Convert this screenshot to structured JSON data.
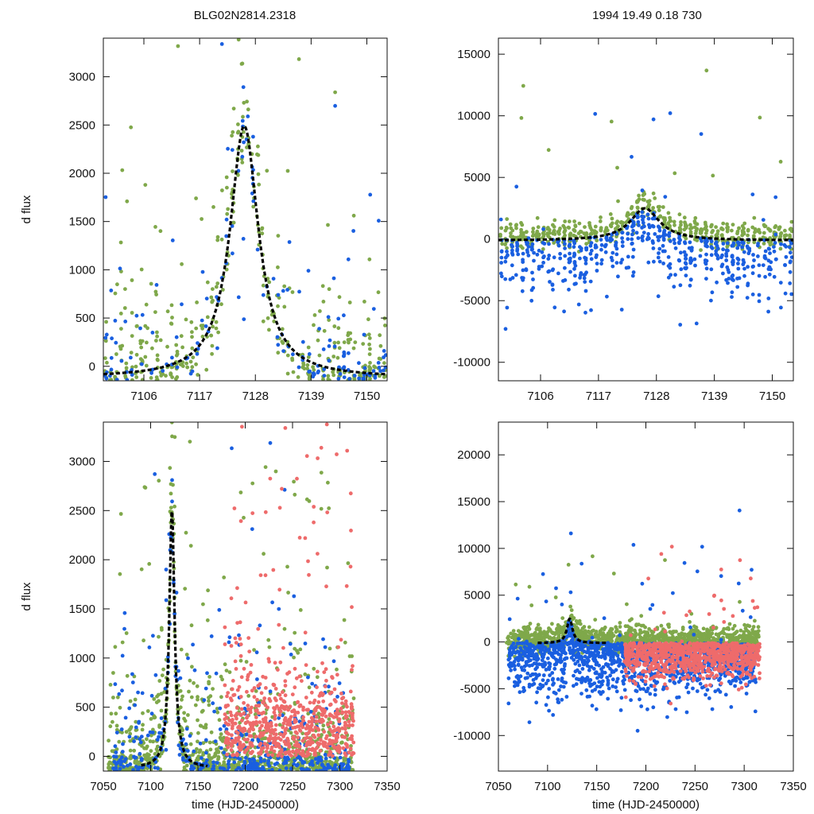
{
  "figure": {
    "title_left": "BLG02N2814.2318",
    "title_right": "1994  19.49  0.18  730"
  },
  "colors": {
    "green": "#7fa84a",
    "blue": "#1a5fe0",
    "red": "#ee6b6b",
    "model": "#000000",
    "axis": "#111111"
  },
  "chart_data": [
    {
      "id": "top-left",
      "type": "scatter",
      "xlim": [
        7098,
        7154
      ],
      "ylim": [
        -150,
        3400
      ],
      "xticks": [
        7106,
        7117,
        7128,
        7139,
        7150
      ],
      "yticks": [
        0,
        500,
        1000,
        1500,
        2000,
        2500,
        3000
      ],
      "xlabel": "",
      "ylabel": "d flux",
      "model": {
        "t0": 7125.8,
        "amp": 2610,
        "tau": 3.4,
        "x_from": 7098,
        "x_to": 7154
      },
      "series": [
        {
          "name": "green",
          "color": "green",
          "x_range": [
            7098,
            7154
          ],
          "count": 420,
          "mode": "peak",
          "scatter": 700,
          "floor": -150
        },
        {
          "name": "blue",
          "color": "blue",
          "x_range": [
            7098,
            7154
          ],
          "count": 170,
          "mode": "peak",
          "scatter": 900,
          "floor": -150
        }
      ]
    },
    {
      "id": "top-right",
      "type": "scatter",
      "xlim": [
        7098,
        7154
      ],
      "ylim": [
        -11500,
        16300
      ],
      "xticks": [
        7106,
        7117,
        7128,
        7139,
        7150
      ],
      "yticks": [
        -10000,
        -5000,
        0,
        5000,
        10000,
        15000
      ],
      "xlabel": "",
      "ylabel": "",
      "model": {
        "t0": 7125.8,
        "amp": 2610,
        "tau": 3.4,
        "x_from": 7098,
        "x_to": 7154
      },
      "series": [
        {
          "name": "green",
          "color": "green",
          "x_range": [
            7098,
            7154
          ],
          "count": 520,
          "mode": "band_up",
          "scatter": 900,
          "floor": -11500
        },
        {
          "name": "blue",
          "color": "blue",
          "x_range": [
            7098,
            7154
          ],
          "count": 520,
          "mode": "dips",
          "scatter": 2200,
          "floor": -11500
        }
      ]
    },
    {
      "id": "bottom-left",
      "type": "scatter",
      "xlim": [
        7050,
        7350
      ],
      "ylim": [
        -150,
        3400
      ],
      "xticks": [
        7050,
        7100,
        7150,
        7200,
        7250,
        7300,
        7350
      ],
      "yticks": [
        0,
        500,
        1000,
        1500,
        2000,
        2500,
        3000
      ],
      "xlabel": "time (HJD-2450000)",
      "ylabel": "d flux",
      "model": {
        "t0": 7122.5,
        "amp": 2610,
        "tau": 3.4,
        "x_from": 7090,
        "x_to": 7160
      },
      "series": [
        {
          "name": "green",
          "color": "green",
          "x_range": [
            7055,
            7315
          ],
          "count": 1100,
          "mode": "peak",
          "scatter": 650,
          "floor": -150
        },
        {
          "name": "blue",
          "color": "blue",
          "x_range": [
            7060,
            7310
          ],
          "count": 420,
          "mode": "peak",
          "scatter": 700,
          "floor": -150
        },
        {
          "name": "red",
          "color": "red",
          "x_range": [
            7178,
            7315
          ],
          "count": 650,
          "mode": "flat",
          "scatter": 700,
          "floor": -150
        }
      ]
    },
    {
      "id": "bottom-right",
      "type": "scatter",
      "xlim": [
        7050,
        7350
      ],
      "ylim": [
        -13800,
        23500
      ],
      "xticks": [
        7050,
        7100,
        7150,
        7200,
        7250,
        7300,
        7350
      ],
      "yticks": [
        -10000,
        -5000,
        0,
        5000,
        10000,
        15000,
        20000
      ],
      "xlabel": "time (HJD-2450000)",
      "ylabel": "",
      "model": {
        "t0": 7122.5,
        "amp": 2610,
        "tau": 3.4,
        "x_from": 7090,
        "x_to": 7160
      },
      "series": [
        {
          "name": "green",
          "color": "green",
          "x_range": [
            7058,
            7315
          ],
          "count": 1100,
          "mode": "band_up",
          "scatter": 1200,
          "floor": -13800
        },
        {
          "name": "blue",
          "color": "blue",
          "x_range": [
            7060,
            7312
          ],
          "count": 1300,
          "mode": "dips",
          "scatter": 2600,
          "floor": -13800
        },
        {
          "name": "red",
          "color": "red",
          "x_range": [
            7178,
            7316
          ],
          "count": 900,
          "mode": "dips",
          "scatter": 1800,
          "floor": -13800
        }
      ]
    }
  ]
}
